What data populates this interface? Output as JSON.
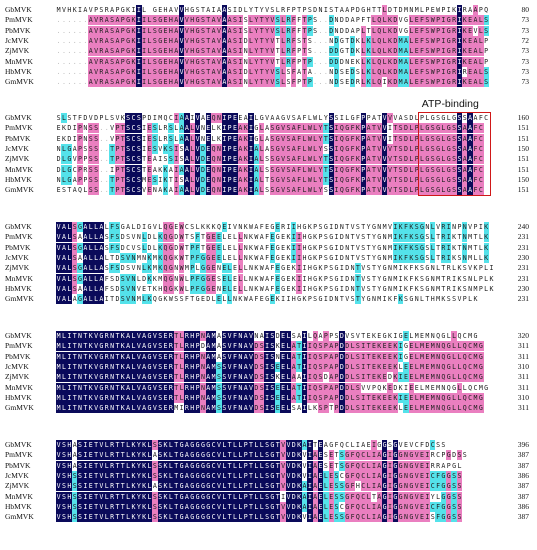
{
  "figure": {
    "annotation": {
      "label": "ATP-binding"
    },
    "blocks": [
      {
        "rows": [
          {
            "name": "GbMVK",
            "seq": "MVHKIAVPSRAPGKIIL GEHAVVHGSTAIAASIDLYTYVSLRFPTPSDNISTAAPDGHTTLDTDMNMLPEWPIKIRAAPQ",
            "end": "80"
          },
          {
            "name": "PmMVK",
            "seq": "......AVRASAPGKIILSGEHAVVHGSTAVAASISLYTYVSLRFFTPS..DNDDAPFTLQLKDVGLEFSWPIGRIKEALS",
            "end": "73"
          },
          {
            "name": "PbMVK",
            "seq": "......AVRASAPGKIILSGEHAVVHGSTAVAASISLYTYVSLRFFTPS..DNDDAPLTLQLKDVGLEFSWPIGRIKEVLS",
            "end": "73"
          },
          {
            "name": "JcMVK",
            "seq": "......AVRASAPGKIILSGEHAVVHGSTAVAASIDLYTYVTLRFSTS...NDGTDKLKLQLKDMALEFSWPIGRIKEALP",
            "end": "72"
          },
          {
            "name": "ZjMVK",
            "seq": "......AVRASAPGKIILSGEHAVVHGSTAVAASINLYTYVTLRFPTS...DDGTDKLKLQLKDMALEFSWPIGRIKEALP",
            "end": "73"
          },
          {
            "name": "MnMVK",
            "seq": "......AVRASAPGKIILSGEHAVVHGSTAVAASINLYTYVTLRFPTP...DDDNEKLKLQLKDMALEFSWPIGRIKEALP",
            "end": "73"
          },
          {
            "name": "HbMVK",
            "seq": "......AVRASAPGKIILSGEHAVVHGSTAVAASIDLYTYVSLSFATA...NDSEDSLKLQLKDMALEFSWPIGRIREALS",
            "end": "73"
          },
          {
            "name": "GmMVK",
            "seq": "......AVRASAPGKIILSGEHAVVHGSTAVAASINLYTYVSLSFPTP...NDSEDRLKLQIKDMALEFSWPIGRIKEALS",
            "end": "73"
          }
        ]
      },
      {
        "rows": [
          {
            "name": "GbMVK",
            "seq": "SLSTFDVDPLSVKSCSPDIMQCIAAIVAEQNIPEEAILGVAAGVSAFLWLYSSILGFPPATVVVASDLPLGSGLGSSAAFC",
            "end": "160"
          },
          {
            "name": "PmMVK",
            "seq": "EKDIPNSS..VPTSCSIESLRSLAALVNELKIPEAKIGLASGVSAFLWLYTSIQGFKPATVVITSDLPLGSGLGSSAAFC",
            "end": "151"
          },
          {
            "name": "PbMVK",
            "seq": "EKDIPNSS..VPTSCSIESLRSLAALVNELKIPEAKIGLASGVSAFLWLYTSIQGFKPATVVITSDLPLGSGLGSSAAFC",
            "end": "151"
          },
          {
            "name": "JcMVK",
            "seq": "NLGAPSSS..TPTSCSIESVKSISALVDEQNIPEAKIALASGVSAFLWLYSSIQGFKPATVVVTSDLPLGSGLGSSAAFC",
            "end": "150"
          },
          {
            "name": "ZjMVK",
            "seq": "DLGVPPSS..TPTSCSTEAISSISALVDEQNIPEAKIALSSGVSAFLWLYTSIQGFKPATVVVTSDLPLGSGLGSSAAFC",
            "end": "151"
          },
          {
            "name": "MnMVK",
            "seq": "DLGCPRSS..IPTSCSTEAKKAIAALVDEQNIPEAKIALSSGVSAFLWLYTSIQGFKPATVVVTSDLPLGSGLGSSAAFC",
            "end": "151"
          },
          {
            "name": "HbMVK",
            "seq": "NLGAPPSS..TPTSCSMESIKTISALVDEQNIPEAKIALTSGVSAFLWLYTSIQGFKPATVVVTSDLPLGSGLGSSAAFC",
            "end": "150"
          },
          {
            "name": "GmMVK",
            "seq": "ESTAQLSS..TPTSCSVENAKAIAALVDEQNIPEAKIALSSGVSAFLWLYSSIQGFKPATVVVTSDLPLGSGLGSSAAFC",
            "end": "151"
          }
        ]
      },
      {
        "rows": [
          {
            "name": "GbMVK",
            "seq": "VALSGALLALFSGALDIGVLQGEWCSLKKKQEIVNKWAFEGERIIHGKPSGIDNTVSTYGNMVIKFKSGNLVRINPNVPIK",
            "end": "240"
          },
          {
            "name": "PmMVK",
            "seq": "VALSAALLASFSDSVNLDLKQGDWTSFTGEELELLNKWAFEGEKIIHGKPSGIDNTVSTYGNMIKFKSGSLTRIKTNMTLK",
            "end": "231"
          },
          {
            "name": "PbMVK",
            "seq": "VALSGALLASFSDCVSLDLKQGDWTPFTGEELELLNKWAFEGEKIIHGKPSGIDNTVSTYGNMIKFKSGSLTRIKTNMTLK",
            "end": "231"
          },
          {
            "name": "JcMVK",
            "seq": "VALSAALLALTDSVNMNKMKQGKWTPFGGEELELLNKWAFEGEKIIHGKPSGIDNTVSTYGNMIKFKSGSLTRIKSNMLLK",
            "end": "230"
          },
          {
            "name": "ZjMVK",
            "seq": "VALSGALLASFSDSVNLKMKQGNWMPLGGENELELLNKWAFEGEKIIHGKPSGIDNTVSTYGNMIKFKSGNLTRLKSVKPLI",
            "end": "231"
          },
          {
            "name": "MnMVK",
            "seq": "VALSGALLAFSDSVNLDKKMQGNWLPFGGESELELLNKWAFEGEKIIHGKPSGIDNTVSTYGNMIKFKSGNMTRIKSNLPLK",
            "end": "231"
          },
          {
            "name": "HbMVK",
            "seq": "VALSAALLAFSDSVNVETKHQGKWLPFGGENELELLNKWAFEGEKIIHGKPSGIDNTVSTYGNMIKFKSGNMTRIKSNMPLK",
            "end": "230"
          },
          {
            "name": "GmMVK",
            "seq": "VALAGALLAITDSVNMLKQGKWSSFTGEDLELLNKWAFEGEKIIHGKPSGIDNTVSTYGNMIKFKSGNLTHMKSSVPLK",
            "end": "231"
          }
        ]
      },
      {
        "rows": [
          {
            "name": "GbMVK",
            "seq": "MLITNTKVGRNTKALVAGVSERTLRHPNAMASVFNAVNAISDELSAILQAPPSDVSVTEKEGKIGELMEMNQGLLQCMG",
            "end": "320"
          },
          {
            "name": "PmMVK",
            "seq": "MLITNTKVGRNTKALVAGVSERTLRHPDAMASVFNAVDSISKELATIIQSPAPDDLSITEKEEKIGELMEMNQGLLQCMG",
            "end": "311"
          },
          {
            "name": "PbMVK",
            "seq": "MLITNTKVGRNTKALVAGVSERTLRHPNAMASVFNAVDSISNELATIIQSPAPDDLSITEKEEKIGELMEMNQGLLQCMG",
            "end": "311"
          },
          {
            "name": "JcMVK",
            "seq": "MLITNTKVGRNTKALVAGVSERTLRHPNAMSSVFNAVDSISEELATIIQSPAPDDLSITEKEEKLEELMEMNQGLLQCMG",
            "end": "310"
          },
          {
            "name": "ZjMVK",
            "seq": "MLITNTKVGRNTKALVAGVSERTLRHPNAMSSVFNAVDSISKELAAIIQSDAPDDLSITEKEDKIEELMEMNQGLLQCMG",
            "end": "311"
          },
          {
            "name": "MnMVK",
            "seq": "MLITNTKVGRNTKALVAGVSERTLRHPNAMSSVFNAVDSISEELATIIQSPAPDDLSVVPQKEDKIEELMEMNQGLLQCMG",
            "end": "311"
          },
          {
            "name": "HbMVK",
            "seq": "MLITNTKVGRNTKALVAGVSERTLRHPNAMSSVFNAVDSISEELATIIQSPAPDDLSITEKEEKIEELMEMNQGLLQCMG",
            "end": "310"
          },
          {
            "name": "GmMVK",
            "seq": "MLITNTKVGRNTKALVAGVSERMIRHPNAMSSVFNAVDSISEELSAILKSPTPDDLSITEKEEKLEELMEMNQGLLQCMG",
            "end": "311"
          }
        ]
      },
      {
        "rows": [
          {
            "name": "GbMVK",
            "seq": "VSHASIETVLRTTLKYKLSSKLTGAGGGGCVLTLLPTLLSGTVVDKAITEAGFQCLIAEIGGSGVEVCFDCSS",
            "end": "396"
          },
          {
            "name": "PmMVK",
            "seq": "VSHASIETVLRTTLKYKLASKLTGAGGGGCVLTLLPTLLSGTVVDKVIAESETSGFQCLIAGIGGNGVEIRCPGDSS",
            "end": "387"
          },
          {
            "name": "PbMVK",
            "seq": "VSHASIETVLRTTLKYKLSSKLTGAGGGGCVLTLLPTLLSGTVVDKVIAESETSGFQCLIAGIGGNGVEIRRAPGL",
            "end": "387"
          },
          {
            "name": "JcMVK",
            "seq": "VSHSSIETVLRTTLKYKLSSKLTGAGGGGCVLTLLPTLLSGTVVDKVIAELESCGFQCLIAGIGGNGVEICFGGSS",
            "end": "386"
          },
          {
            "name": "ZjMVK",
            "seq": "VSHSSIETVLRTTLKYKLASKLTGAGGGGCVLTLLPTLLSGTVVDKAIAELESSGFHCLIAGIGGNGVEICFGGSS",
            "end": "387"
          },
          {
            "name": "MnMVK",
            "seq": "VSHSSIETVLRTTLKYKLSSKLTGAGGGGCVLTLLPTLLSGTIVDKAIAELESSGFQCLTAGIGGNGVEIYLGGSS",
            "end": "387"
          },
          {
            "name": "HbMVK",
            "seq": "VSHSSIETVLRTTLKYKLSSKLTGAGGGGCVLTLLPTLLSGTVVDKAIAELESCGFQCLIAGIGGNGVEICFGGSS",
            "end": "386"
          },
          {
            "name": "GmMVK",
            "seq": "VSHSSIETVLRTTLKYKLSSKLTGAGGGGCVLTLLPTLLSGTVVDKVIAELESSGFQCLIAGIGGNGVEISFGGSS",
            "end": "387"
          }
        ]
      }
    ]
  },
  "palette": {
    "identical": "#0a0a5a",
    "high": "#ea7fc0",
    "similar": "#54e2ea",
    "box": "#d01818"
  }
}
